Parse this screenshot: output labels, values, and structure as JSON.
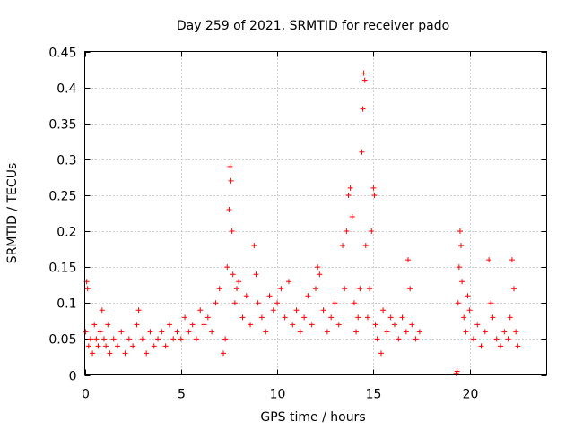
{
  "chart_data": {
    "type": "scatter",
    "title": "Day 259 of 2021, SRMTID for receiver pado",
    "xlabel": "GPS time / hours",
    "ylabel": "SRMTID / TECUs",
    "xlim": [
      0,
      24
    ],
    "ylim": [
      0,
      0.45
    ],
    "xticks": [
      0,
      5,
      10,
      15,
      20
    ],
    "yticks": [
      0,
      0.05,
      0.1,
      0.15,
      0.2,
      0.25,
      0.3,
      0.35,
      0.4,
      0.45
    ],
    "xtick_labels": [
      "0",
      "5",
      "10",
      "15",
      "20"
    ],
    "ytick_labels": [
      "0",
      "0.05",
      "0.1",
      "0.15",
      "0.2",
      "0.25",
      "0.3",
      "0.35",
      "0.4",
      "0.45"
    ],
    "grid": true,
    "marker": "+",
    "color": "#ff0000",
    "series": [
      {
        "name": "SRMTID",
        "points": [
          [
            0.05,
            0.06
          ],
          [
            0.1,
            0.13
          ],
          [
            0.15,
            0.12
          ],
          [
            0.2,
            0.04
          ],
          [
            0.3,
            0.05
          ],
          [
            0.4,
            0.03
          ],
          [
            0.5,
            0.07
          ],
          [
            0.6,
            0.05
          ],
          [
            0.7,
            0.04
          ],
          [
            0.8,
            0.06
          ],
          [
            0.9,
            0.09
          ],
          [
            1.0,
            0.05
          ],
          [
            1.1,
            0.04
          ],
          [
            1.2,
            0.07
          ],
          [
            1.3,
            0.03
          ],
          [
            1.5,
            0.05
          ],
          [
            1.7,
            0.04
          ],
          [
            1.9,
            0.06
          ],
          [
            2.1,
            0.03
          ],
          [
            2.3,
            0.05
          ],
          [
            2.5,
            0.04
          ],
          [
            2.7,
            0.07
          ],
          [
            2.8,
            0.09
          ],
          [
            3.0,
            0.05
          ],
          [
            3.2,
            0.03
          ],
          [
            3.4,
            0.06
          ],
          [
            3.6,
            0.04
          ],
          [
            3.8,
            0.05
          ],
          [
            4.0,
            0.06
          ],
          [
            4.2,
            0.04
          ],
          [
            4.4,
            0.07
          ],
          [
            4.6,
            0.05
          ],
          [
            4.8,
            0.06
          ],
          [
            5.0,
            0.05
          ],
          [
            5.2,
            0.08
          ],
          [
            5.4,
            0.06
          ],
          [
            5.6,
            0.07
          ],
          [
            5.8,
            0.05
          ],
          [
            6.0,
            0.09
          ],
          [
            6.2,
            0.07
          ],
          [
            6.4,
            0.08
          ],
          [
            6.6,
            0.06
          ],
          [
            6.8,
            0.1
          ],
          [
            7.0,
            0.12
          ],
          [
            7.2,
            0.03
          ],
          [
            7.3,
            0.05
          ],
          [
            7.4,
            0.15
          ],
          [
            7.5,
            0.23
          ],
          [
            7.55,
            0.29
          ],
          [
            7.6,
            0.27
          ],
          [
            7.65,
            0.2
          ],
          [
            7.7,
            0.14
          ],
          [
            7.8,
            0.1
          ],
          [
            7.9,
            0.12
          ],
          [
            8.0,
            0.13
          ],
          [
            8.2,
            0.08
          ],
          [
            8.4,
            0.11
          ],
          [
            8.6,
            0.07
          ],
          [
            8.8,
            0.18
          ],
          [
            8.9,
            0.14
          ],
          [
            9.0,
            0.1
          ],
          [
            9.2,
            0.08
          ],
          [
            9.4,
            0.06
          ],
          [
            9.6,
            0.11
          ],
          [
            9.8,
            0.09
          ],
          [
            10.0,
            0.1
          ],
          [
            10.2,
            0.12
          ],
          [
            10.4,
            0.08
          ],
          [
            10.6,
            0.13
          ],
          [
            10.8,
            0.07
          ],
          [
            11.0,
            0.09
          ],
          [
            11.2,
            0.06
          ],
          [
            11.4,
            0.08
          ],
          [
            11.6,
            0.11
          ],
          [
            11.8,
            0.07
          ],
          [
            12.0,
            0.12
          ],
          [
            12.1,
            0.15
          ],
          [
            12.2,
            0.14
          ],
          [
            12.4,
            0.09
          ],
          [
            12.6,
            0.06
          ],
          [
            12.8,
            0.08
          ],
          [
            13.0,
            0.1
          ],
          [
            13.2,
            0.07
          ],
          [
            13.4,
            0.18
          ],
          [
            13.5,
            0.12
          ],
          [
            13.6,
            0.2
          ],
          [
            13.7,
            0.25
          ],
          [
            13.8,
            0.26
          ],
          [
            13.9,
            0.22
          ],
          [
            14.0,
            0.1
          ],
          [
            14.1,
            0.06
          ],
          [
            14.2,
            0.08
          ],
          [
            14.3,
            0.12
          ],
          [
            14.4,
            0.31
          ],
          [
            14.45,
            0.37
          ],
          [
            14.5,
            0.42
          ],
          [
            14.55,
            0.41
          ],
          [
            14.6,
            0.18
          ],
          [
            14.7,
            0.08
          ],
          [
            14.8,
            0.12
          ],
          [
            14.9,
            0.2
          ],
          [
            15.0,
            0.26
          ],
          [
            15.05,
            0.25
          ],
          [
            15.1,
            0.07
          ],
          [
            15.2,
            0.05
          ],
          [
            15.4,
            0.03
          ],
          [
            15.5,
            0.09
          ],
          [
            15.7,
            0.06
          ],
          [
            15.9,
            0.08
          ],
          [
            16.1,
            0.07
          ],
          [
            16.3,
            0.05
          ],
          [
            16.5,
            0.08
          ],
          [
            16.7,
            0.06
          ],
          [
            16.8,
            0.16
          ],
          [
            16.9,
            0.12
          ],
          [
            17.0,
            0.07
          ],
          [
            17.2,
            0.05
          ],
          [
            17.4,
            0.06
          ],
          [
            19.3,
            0.002
          ],
          [
            19.35,
            0.005
          ],
          [
            19.4,
            0.1
          ],
          [
            19.45,
            0.15
          ],
          [
            19.5,
            0.2
          ],
          [
            19.55,
            0.18
          ],
          [
            19.6,
            0.13
          ],
          [
            19.7,
            0.08
          ],
          [
            19.8,
            0.06
          ],
          [
            19.9,
            0.11
          ],
          [
            20.0,
            0.09
          ],
          [
            20.2,
            0.05
          ],
          [
            20.4,
            0.07
          ],
          [
            20.6,
            0.04
          ],
          [
            20.8,
            0.06
          ],
          [
            21.0,
            0.16
          ],
          [
            21.1,
            0.1
          ],
          [
            21.2,
            0.08
          ],
          [
            21.4,
            0.05
          ],
          [
            21.6,
            0.04
          ],
          [
            21.8,
            0.06
          ],
          [
            22.0,
            0.05
          ],
          [
            22.1,
            0.08
          ],
          [
            22.2,
            0.16
          ],
          [
            22.3,
            0.12
          ],
          [
            22.4,
            0.06
          ],
          [
            22.5,
            0.04
          ]
        ]
      }
    ]
  }
}
